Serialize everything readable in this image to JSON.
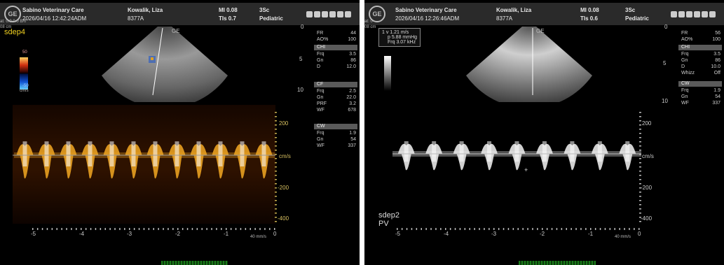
{
  "left": {
    "header": {
      "logo": "GE",
      "clinic": "Sabino Veterinary Care",
      "patient": "Kowalik, Liza",
      "datetime": "2026/04/16 12:42:24ADM",
      "patient_id": "8377A",
      "mi": "MI 0.08",
      "tis": "TIs 0.7",
      "probe": "3Sc",
      "preset": "Pediatric"
    },
    "side_text": [
      "at: 0.0 0.0 B/0",
      "08 cm"
    ],
    "study_label": "sdep4",
    "color_bar": {
      "top": "50",
      "bottom": "-50",
      "unit": "cm/s"
    },
    "probe_mark": "GE",
    "depth": [
      "0",
      "5",
      "10"
    ],
    "params": {
      "main": [
        {
          "k": "FR",
          "v": "44"
        },
        {
          "k": "AO%",
          "v": "100"
        }
      ],
      "chi_title": "CHI",
      "chi": [
        {
          "k": "Frq",
          "v": "3.5"
        },
        {
          "k": "Gn",
          "v": "86"
        },
        {
          "k": "D",
          "v": "12.0"
        }
      ],
      "cf_title": "CF",
      "cf": [
        {
          "k": "Frq",
          "v": "2.5"
        },
        {
          "k": "Gn",
          "v": "22.0"
        },
        {
          "k": "PRF",
          "v": "3.2"
        },
        {
          "k": "WF",
          "v": "678"
        }
      ],
      "cw_title": "CW",
      "cw": [
        {
          "k": "Frq",
          "v": "1.9"
        },
        {
          "k": "Gn",
          "v": "54"
        },
        {
          "k": "WF",
          "v": "337"
        }
      ]
    },
    "yaxis": [
      "200",
      "cm/s",
      "-200",
      "-400"
    ],
    "xaxis": [
      "-5",
      "-4",
      "-3",
      "-2",
      "-1",
      "0"
    ],
    "sweep": "40 mm/s",
    "accent": "#e8a020"
  },
  "right": {
    "header": {
      "logo": "GE",
      "clinic": "Sabino Veterinary Care",
      "patient": "Kowalik, Liza",
      "datetime": "2026/04/16 12:26:46ADM",
      "patient_id": "8377A",
      "mi": "MI 0.08",
      "tis": "TIs 0.6",
      "probe": "3Sc",
      "preset": "Pediatric"
    },
    "side_text": [
      "at: 0",
      "08 cm"
    ],
    "measure": {
      "l1": "1  v    1.21 m/s",
      "l2": "p  5.88 mmHg",
      "l3": "Frq  3.07 kHz"
    },
    "probe_mark": "GE",
    "depth": [
      "0",
      "5",
      "10"
    ],
    "study_label": "sdep2",
    "study_sub": "PV",
    "params": {
      "main": [
        {
          "k": "FR",
          "v": "56"
        },
        {
          "k": "AO%",
          "v": "100"
        }
      ],
      "chi_title": "CHI",
      "chi": [
        {
          "k": "Frq",
          "v": "3.5"
        },
        {
          "k": "Gn",
          "v": "86"
        },
        {
          "k": "D",
          "v": "10.0"
        },
        {
          "k": "Whizz",
          "v": "Off"
        }
      ],
      "cw_title": "CW",
      "cw": [
        {
          "k": "Frq",
          "v": "1.9"
        },
        {
          "k": "Gn",
          "v": "54"
        },
        {
          "k": "WF",
          "v": "337"
        }
      ]
    },
    "yaxis": [
      "200",
      "cm/s",
      "-200",
      "-400"
    ],
    "xaxis": [
      "-5",
      "-4",
      "-3",
      "-2",
      "-1",
      "0"
    ],
    "sweep": "40 mm/s",
    "accent": "#e8e8e8"
  }
}
